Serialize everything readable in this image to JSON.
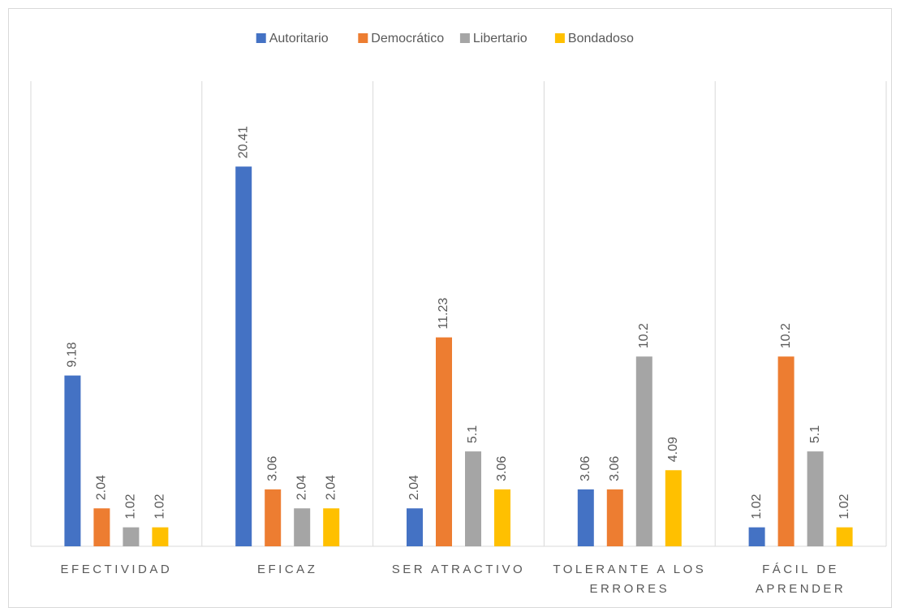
{
  "chart_data": {
    "type": "bar",
    "categories": [
      "EFECTIVIDAD",
      "EFICAZ",
      "SER ATRACTIVO",
      "TOLERANTE A LOS ERRORES",
      "FÁCIL DE APRENDER"
    ],
    "series": [
      {
        "name": "Autoritario",
        "color": "#4472c4",
        "values": [
          9.18,
          20.41,
          2.04,
          3.06,
          1.02
        ]
      },
      {
        "name": "Democrático",
        "color": "#ed7d31",
        "values": [
          2.04,
          3.06,
          11.23,
          3.06,
          10.2
        ]
      },
      {
        "name": "Libertario",
        "color": "#a5a5a5",
        "values": [
          1.02,
          2.04,
          5.1,
          10.2,
          5.1
        ]
      },
      {
        "name": "Bondadoso",
        "color": "#ffc000",
        "values": [
          1.02,
          2.04,
          3.06,
          4.09,
          1.02
        ]
      }
    ],
    "ylim": [
      0,
      25
    ],
    "legend": "top"
  }
}
